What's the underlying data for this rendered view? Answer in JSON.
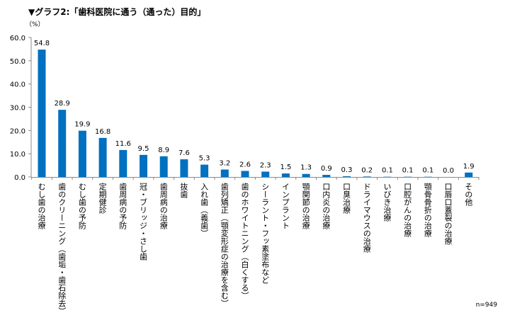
{
  "title": "▼グラフ2:「歯科医院に通う（通った）目的」",
  "unit_label": "（%）",
  "sample_size": "n=949",
  "chart_data": {
    "type": "bar",
    "title": "▼グラフ2:「歯科医院に通う（通った）目的」",
    "ylabel": "（%）",
    "ylim": [
      0,
      60
    ],
    "yticks": [
      "0.0",
      "10.0",
      "20.0",
      "30.0",
      "40.0",
      "50.0",
      "60.0"
    ],
    "grid": false,
    "bar_color": "#0070C0",
    "categories": [
      "むし歯の治療",
      "歯のクリーニング（歯垢・歯石除去）",
      "むし歯の予防",
      "定期健診",
      "歯周病の予防",
      "冠・ブリッジ・さし歯",
      "歯周病の治療",
      "抜歯",
      "入れ歯（義歯）",
      "歯列矯正（顎変形症の治療を含む）",
      "歯のホワイトニング（白くする）",
      "シーラント・フッ素塗布など",
      "インプラント",
      "顎関節の治療",
      "口内炎の治療",
      "口臭治療",
      "ドライマウスの治療",
      "いびき治療",
      "口腔がんの治療",
      "顎骨骨折の治療",
      "口唇口蓋裂の治療",
      "その他"
    ],
    "values": [
      54.8,
      28.9,
      19.9,
      16.8,
      11.6,
      9.5,
      8.9,
      7.6,
      5.3,
      3.2,
      2.6,
      2.3,
      1.5,
      1.3,
      0.9,
      0.3,
      0.2,
      0.1,
      0.1,
      0.1,
      0.0,
      1.9
    ],
    "value_labels": [
      "54.8",
      "28.9",
      "19.9",
      "16.8",
      "11.6",
      "9.5",
      "8.9",
      "7.6",
      "5.3",
      "3.2",
      "2.6",
      "2.3",
      "1.5",
      "1.3",
      "0.9",
      "0.3",
      "0.2",
      "0.1",
      "0.1",
      "0.1",
      "0.0",
      "1.9"
    ]
  }
}
